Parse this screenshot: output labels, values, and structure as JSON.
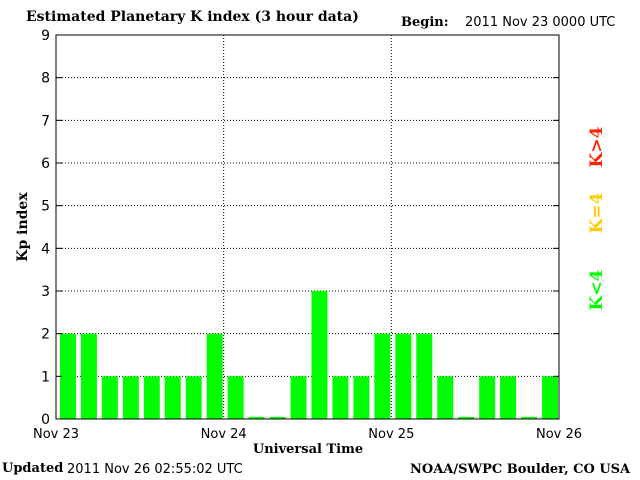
{
  "header": {
    "title": "Estimated Planetary K index (3 hour data)",
    "begin_label": "Begin:",
    "begin_value": "2011 Nov 23 0000 UTC"
  },
  "footer": {
    "updated_label": "Updated",
    "updated_value": "2011 Nov 26 02:55:02 UTC",
    "credit": "NOAA/SWPC Boulder, CO USA"
  },
  "legend": [
    {
      "label": "K<4",
      "color": "#00ff00"
    },
    {
      "label": "K=4",
      "color": "#ffcc00"
    },
    {
      "label": "K>4",
      "color": "#ff2200"
    }
  ],
  "chart_data": {
    "type": "bar",
    "title": "Estimated Planetary K index (3 hour data)",
    "xlabel": "Universal Time",
    "ylabel": "Kp index",
    "ylim": [
      0,
      9
    ],
    "yticks": [
      0,
      1,
      2,
      3,
      4,
      5,
      6,
      7,
      8,
      9
    ],
    "xtick_labels": [
      "Nov 23",
      "Nov 24",
      "Nov 25",
      "Nov 26"
    ],
    "values": [
      2,
      2,
      1,
      1,
      1,
      1,
      1,
      2,
      1,
      0.05,
      0.05,
      1,
      3,
      1,
      1,
      2,
      2,
      2,
      1,
      0.05,
      1,
      1,
      0.05,
      1
    ],
    "bar_color": "#00ff00",
    "grid": true
  }
}
